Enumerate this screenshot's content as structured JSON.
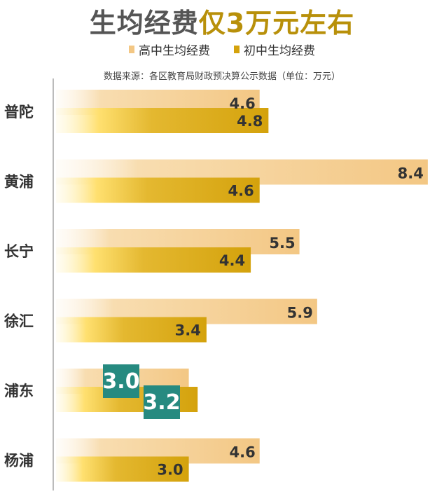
{
  "title": {
    "part1": "生均经费",
    "part2": "仅3万元左右"
  },
  "legend": [
    {
      "name": "高中生均经费",
      "color": "#f3c784"
    },
    {
      "name": "初中生均经费",
      "color": "#d4a20c"
    }
  ],
  "source": "数据来源：各区教育局财政预决算公示数据（单位：万元）",
  "colors": {
    "high_bar": "#f3cd8d",
    "mid_bar": "#d4a20c",
    "mid_bar_light": "#ffe070",
    "highlight_box": "#268a80",
    "axis": "#bbbbbb"
  },
  "chart_data": {
    "type": "bar",
    "orientation": "horizontal",
    "categories": [
      "普陀",
      "黄浦",
      "长宁",
      "徐汇",
      "浦东",
      "杨浦"
    ],
    "series": [
      {
        "name": "高中生均经费",
        "values": [
          4.6,
          8.4,
          5.5,
          5.9,
          3.0,
          4.6
        ]
      },
      {
        "name": "初中生均经费",
        "values": [
          4.8,
          4.6,
          4.4,
          3.4,
          3.2,
          3.0
        ]
      }
    ],
    "value_labels": {
      "高中生均经费": [
        "4.6",
        "8.4",
        "5.5",
        "5.9",
        "3.0",
        "4.6"
      ],
      "初中生均经费": [
        "4.8",
        "4.6",
        "4.4",
        "3.4",
        "3.2",
        "3.0"
      ]
    },
    "highlight_category": "浦东",
    "unit": "万元",
    "xlim": [
      0,
      8.5
    ],
    "grid": false
  }
}
